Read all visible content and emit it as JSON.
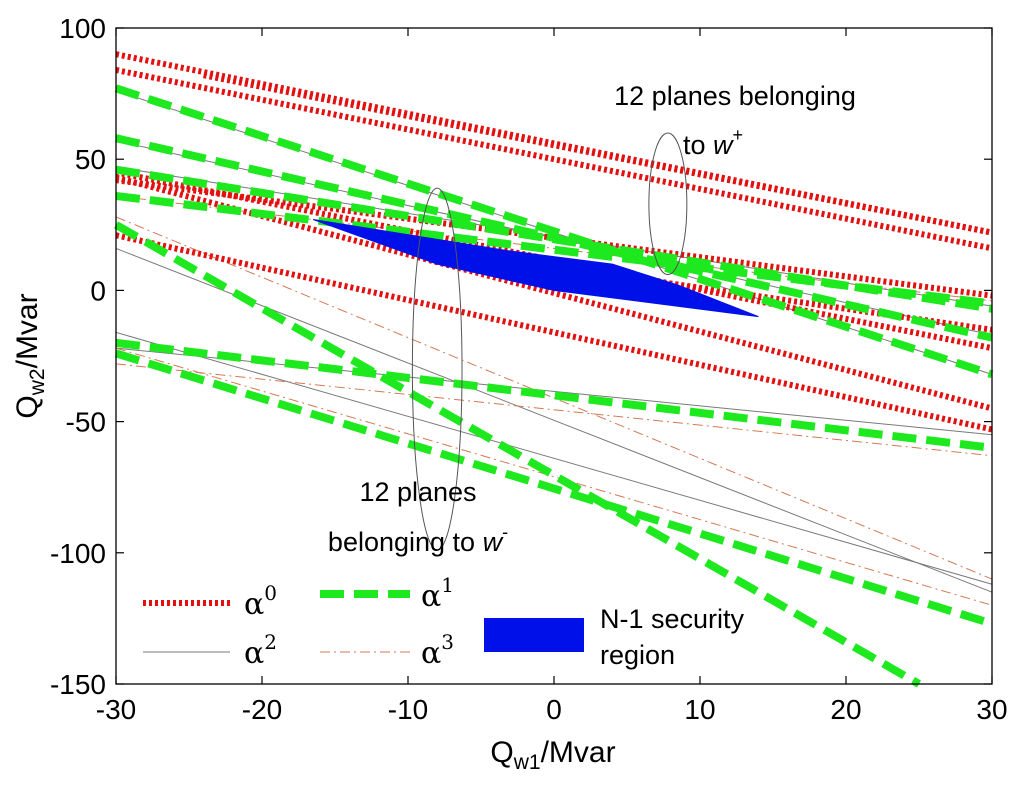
{
  "chart_data": {
    "type": "line",
    "xlabel": "Q",
    "xlabel_sub": "w1",
    "xlabel_unit": "/Mvar",
    "ylabel": "Q",
    "ylabel_sub": "w2",
    "ylabel_unit": "/Mvar",
    "xlim": [
      -30,
      30
    ],
    "ylim": [
      -150,
      100
    ],
    "xticks": [
      "-30",
      "-20",
      "-10",
      "0",
      "10",
      "20",
      "30"
    ],
    "yticks": [
      "100",
      "50",
      "0",
      "-50",
      "-100",
      "-150"
    ],
    "xtick_values": [
      -30,
      -20,
      -10,
      0,
      10,
      20,
      30
    ],
    "ytick_values": [
      100,
      50,
      0,
      -50,
      -100,
      -150
    ],
    "colors": {
      "alpha0": "#e31010",
      "alpha1": "#1ee81e",
      "alpha2": "#7a7a7a",
      "alpha3": "#d27a55",
      "region": "#0010e8"
    },
    "annotations": {
      "upper_line1": "12 planes belonging",
      "upper_line2_prefix": "to ",
      "upper_var": "w",
      "upper_sup": "+",
      "lower_line1": "12 planes",
      "lower_line2_prefix": "belonging to ",
      "lower_var": "w",
      "lower_sup": "-"
    },
    "legend": {
      "position": "bottom-left",
      "symbol": "α",
      "entries": [
        {
          "id": "alpha0",
          "sup": "0"
        },
        {
          "id": "alpha1",
          "sup": "1"
        },
        {
          "id": "alpha2",
          "sup": "2"
        },
        {
          "id": "alpha3",
          "sup": "3"
        }
      ],
      "region_label_1": "N-1 security",
      "region_label_2": "region"
    },
    "series": [
      {
        "name": "alpha0",
        "style": "dotted",
        "lines": [
          [
            [
              -30,
              90
            ],
            [
              30,
              22
            ]
          ],
          [
            [
              -30,
              84
            ],
            [
              30,
              16
            ]
          ],
          [
            [
              -24,
              82
            ],
            [
              30,
              22
            ]
          ],
          [
            [
              -30,
              45
            ],
            [
              30,
              -22
            ]
          ],
          [
            [
              -30,
              43
            ],
            [
              30,
              -45
            ]
          ],
          [
            [
              -30,
              21
            ],
            [
              30,
              -53
            ]
          ],
          [
            [
              -30,
              42
            ],
            [
              30,
              -2
            ]
          ],
          [
            [
              -10,
              17
            ],
            [
              30,
              -15
            ]
          ]
        ]
      },
      {
        "name": "alpha1",
        "style": "dashed",
        "lines": [
          [
            [
              -30,
              77
            ],
            [
              30,
              -32
            ]
          ],
          [
            [
              -30,
              58
            ],
            [
              30,
              -18
            ]
          ],
          [
            [
              -30,
              46
            ],
            [
              30,
              -7
            ]
          ],
          [
            [
              -30,
              36
            ],
            [
              30,
              -5
            ]
          ],
          [
            [
              -30,
              25
            ],
            [
              25,
              -150
            ]
          ],
          [
            [
              -30,
              -20
            ],
            [
              30,
              -60
            ]
          ],
          [
            [
              -30,
              -24
            ],
            [
              30,
              -127
            ]
          ]
        ]
      },
      {
        "name": "alpha2",
        "style": "thin",
        "lines": [
          [
            [
              -30,
              76
            ],
            [
              30,
              -32
            ]
          ],
          [
            [
              -30,
              57
            ],
            [
              30,
              -17
            ]
          ],
          [
            [
              -30,
              47
            ],
            [
              30,
              -6
            ]
          ],
          [
            [
              -30,
              16
            ],
            [
              30,
              -115
            ]
          ],
          [
            [
              -30,
              -16
            ],
            [
              30,
              -112
            ]
          ],
          [
            [
              -30,
              -22
            ],
            [
              30,
              -55
            ]
          ]
        ]
      },
      {
        "name": "alpha3",
        "style": "dashdot",
        "lines": [
          [
            [
              -30,
              36
            ],
            [
              30,
              -4
            ]
          ],
          [
            [
              -30,
              -28
            ],
            [
              30,
              -63
            ]
          ],
          [
            [
              -30,
              -22
            ],
            [
              30,
              -120
            ]
          ],
          [
            [
              -30,
              28
            ],
            [
              30,
              -110
            ]
          ]
        ]
      }
    ],
    "region": {
      "name": "N-1 security region",
      "points": [
        [
          -16.5,
          27
        ],
        [
          -3,
          15
        ],
        [
          4,
          10
        ],
        [
          8.5,
          2
        ],
        [
          14,
          -10
        ],
        [
          0,
          0
        ],
        [
          -8,
          10
        ]
      ]
    },
    "ellipses": [
      {
        "cx": 7.8,
        "cy": 33,
        "rx": 1.3,
        "ry": 27
      },
      {
        "cx": -8,
        "cy": -30,
        "rx": 1.7,
        "ry": 69
      }
    ]
  }
}
